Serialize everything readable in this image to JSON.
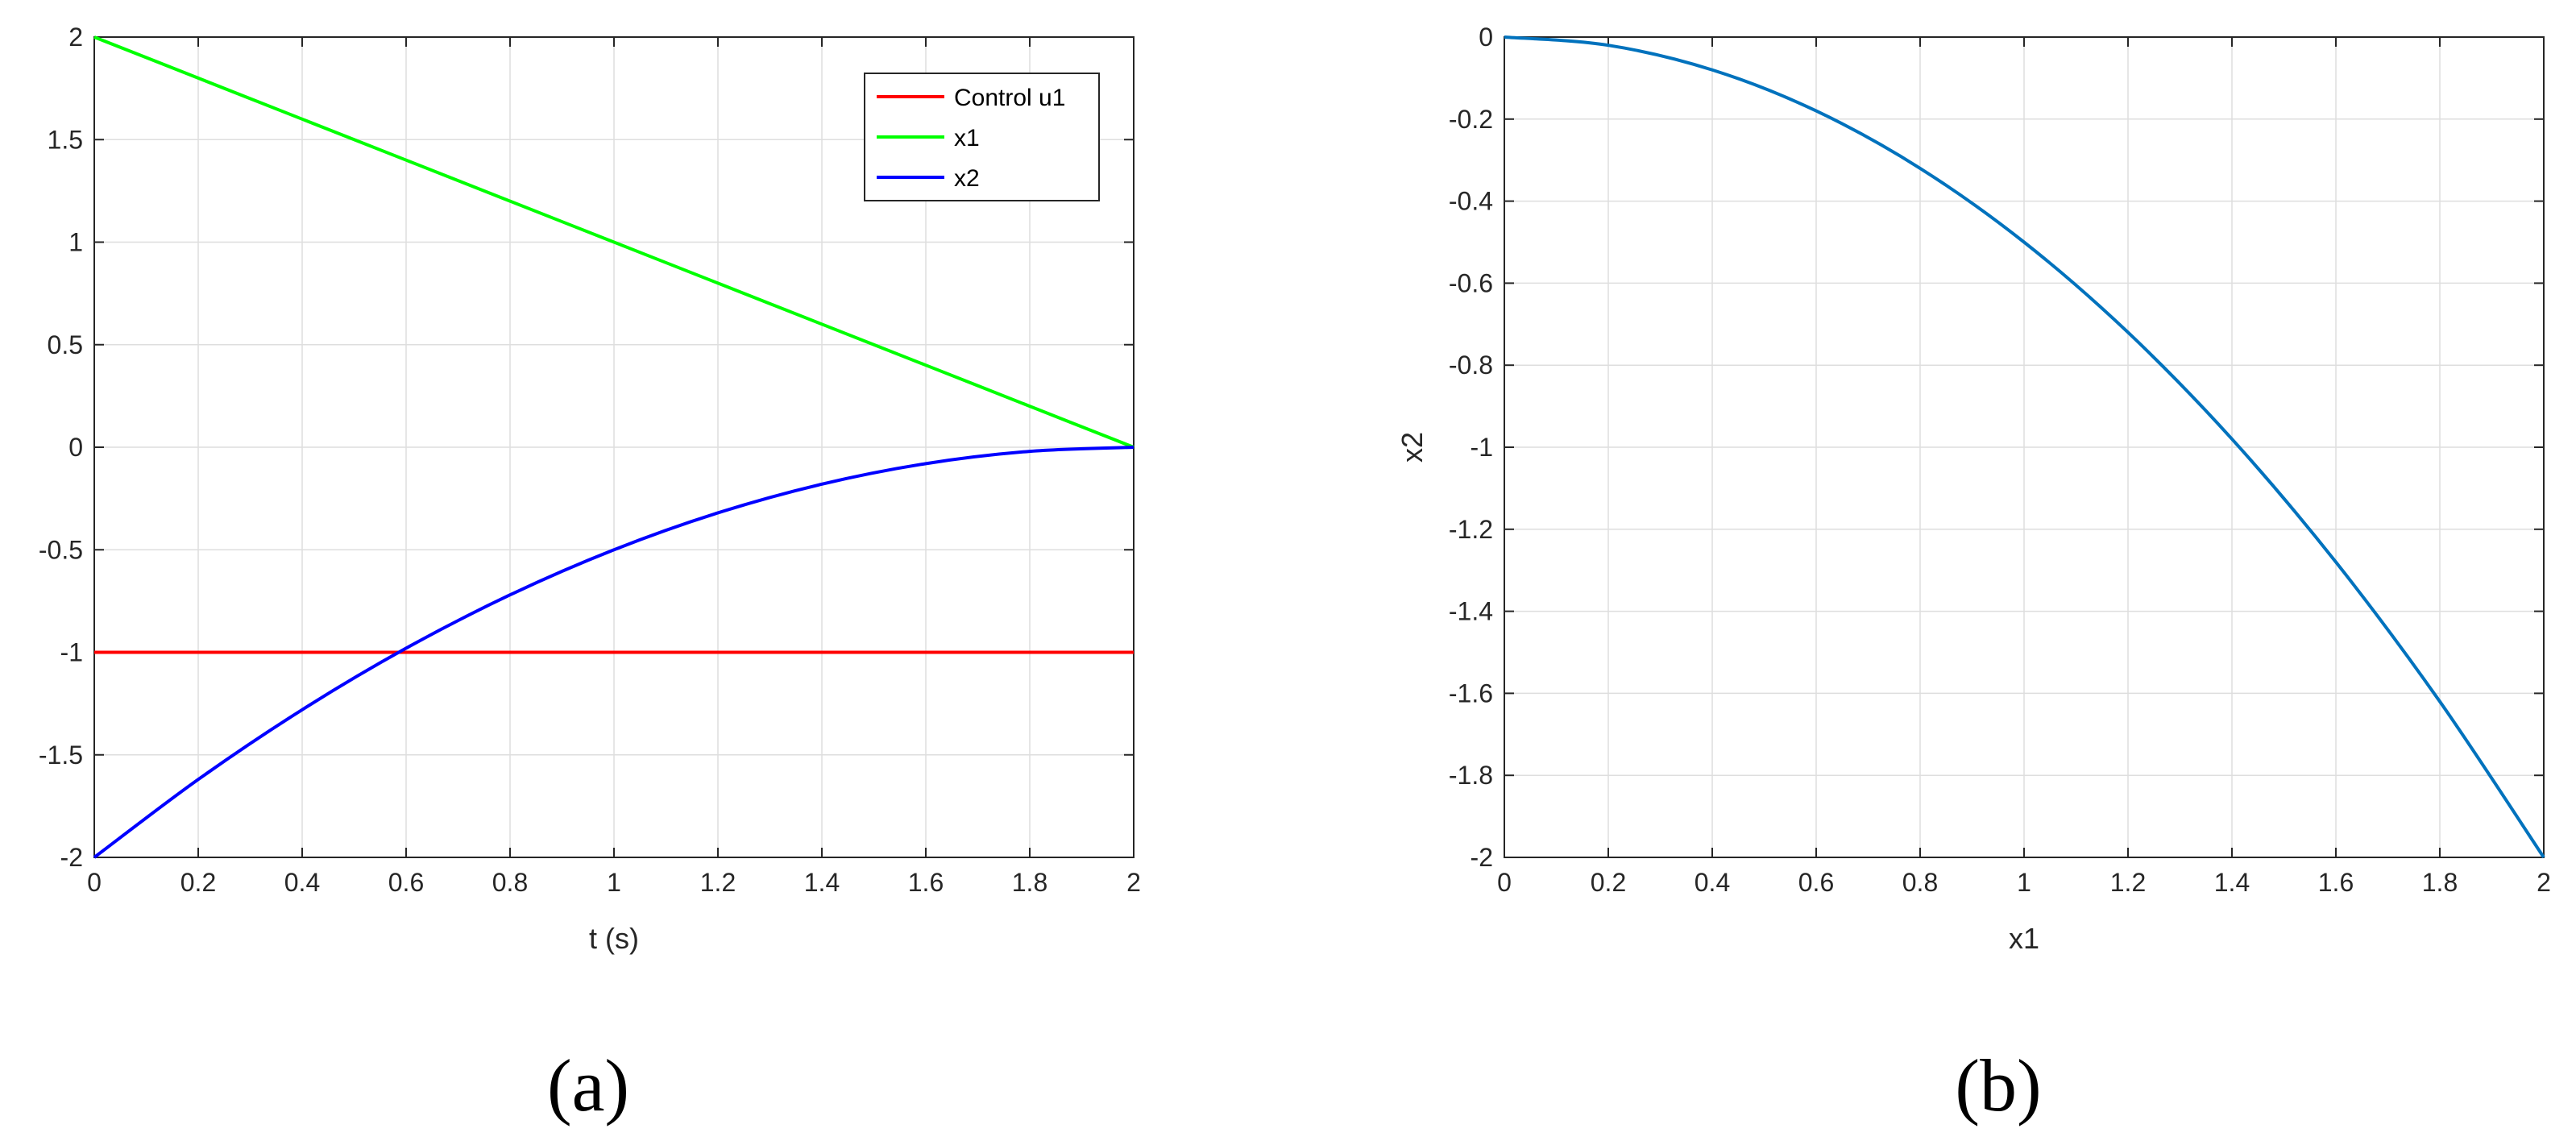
{
  "chart_data": [
    {
      "type": "line",
      "caption": "(a)",
      "title": "",
      "xlabel": "t (s)",
      "ylabel": "",
      "xlim": [
        0,
        2
      ],
      "ylim": [
        -2,
        2
      ],
      "xticks": [
        "0",
        "0.2",
        "0.4",
        "0.6",
        "0.8",
        "1",
        "1.2",
        "1.4",
        "1.6",
        "1.8",
        "2"
      ],
      "yticks": [
        "-2",
        "-1.5",
        "-1",
        "-0.5",
        "0",
        "0.5",
        "1",
        "1.5",
        "2"
      ],
      "grid": true,
      "legend_position": "top-right",
      "series": [
        {
          "name": "Control u1",
          "color": "#ff0000",
          "x": [
            0,
            0.2,
            0.4,
            0.6,
            0.8,
            1.0,
            1.2,
            1.4,
            1.6,
            1.8,
            2.0
          ],
          "y": [
            -1,
            -1,
            -1,
            -1,
            -1,
            -1,
            -1,
            -1,
            -1,
            -1,
            -1
          ]
        },
        {
          "name": "x1",
          "color": "#00ff00",
          "x": [
            0,
            0.2,
            0.4,
            0.6,
            0.8,
            1.0,
            1.2,
            1.4,
            1.6,
            1.8,
            2.0
          ],
          "y": [
            2.0,
            1.8,
            1.6,
            1.4,
            1.2,
            1.0,
            0.8,
            0.6,
            0.4,
            0.2,
            0.0
          ]
        },
        {
          "name": "x2",
          "color": "#0000ff",
          "x": [
            0,
            0.2,
            0.4,
            0.6,
            0.8,
            1.0,
            1.2,
            1.4,
            1.6,
            1.8,
            2.0
          ],
          "y": [
            -2.0,
            -1.62,
            -1.28,
            -0.98,
            -0.72,
            -0.5,
            -0.32,
            -0.18,
            -0.08,
            -0.02,
            0.0
          ]
        }
      ]
    },
    {
      "type": "line",
      "caption": "(b)",
      "title": "",
      "xlabel": "x1",
      "ylabel": "x2",
      "xlim": [
        0,
        2
      ],
      "ylim": [
        -2,
        0
      ],
      "xticks": [
        "0",
        "0.2",
        "0.4",
        "0.6",
        "0.8",
        "1",
        "1.2",
        "1.4",
        "1.6",
        "1.8",
        "2"
      ],
      "yticks": [
        "-2",
        "-1.8",
        "-1.6",
        "-1.4",
        "-1.2",
        "-1",
        "-0.8",
        "-0.6",
        "-0.4",
        "-0.2",
        "0"
      ],
      "grid": true,
      "series": [
        {
          "color": "#0072bd",
          "x": [
            0,
            0.2,
            0.4,
            0.6,
            0.8,
            1.0,
            1.2,
            1.4,
            1.6,
            1.8,
            2.0
          ],
          "y": [
            0.0,
            -0.02,
            -0.08,
            -0.18,
            -0.32,
            -0.5,
            -0.72,
            -0.98,
            -1.28,
            -1.62,
            -2.0
          ]
        }
      ]
    }
  ]
}
